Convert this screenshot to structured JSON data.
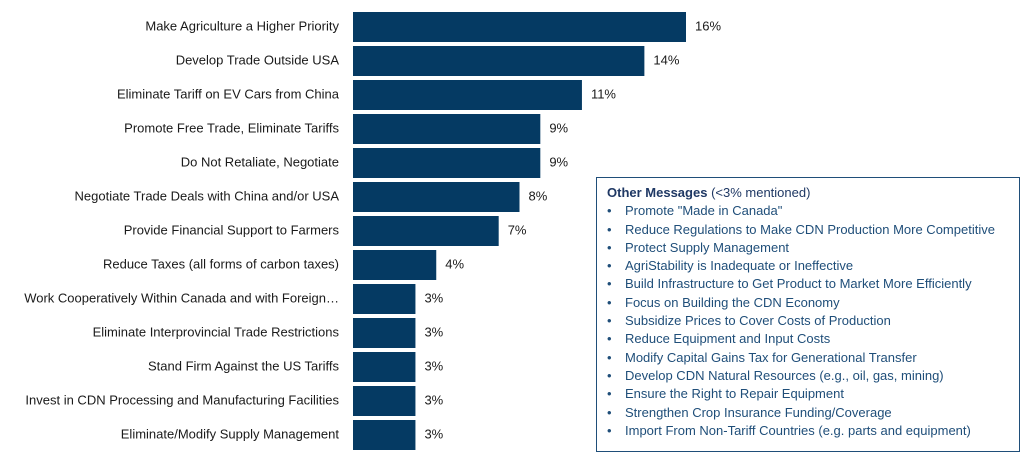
{
  "chart_data": {
    "type": "bar",
    "orientation": "horizontal",
    "color": "#053a63",
    "categories": [
      "Make Agriculture a Higher Priority",
      "Develop Trade Outside USA",
      "Eliminate Tariff on EV Cars from China",
      "Promote Free Trade, Eliminate Tariffs",
      "Do Not Retaliate, Negotiate",
      "Negotiate Trade Deals with China and/or USA",
      "Provide Financial Support to Farmers",
      "Reduce Taxes (all forms of carbon taxes)",
      "Work Cooperatively Within Canada and with Foreign…",
      "Eliminate Interprovincial Trade Restrictions",
      "Stand Firm Against the US Tariffs",
      "Invest in CDN Processing and Manufacturing Facilities",
      "Eliminate/Modify Supply Management"
    ],
    "values": [
      16,
      14,
      11,
      9,
      9,
      8,
      7,
      4,
      3,
      3,
      3,
      3,
      3
    ],
    "value_labels": [
      "16%",
      "14%",
      "11%",
      "9%",
      "9%",
      "8%",
      "7%",
      "4%",
      "3%",
      "3%",
      "3%",
      "3%",
      "3%"
    ],
    "annotation": {
      "title": "Other Messages",
      "subtitle": "(<3% mentioned)",
      "items": [
        "Promote \"Made in Canada\"",
        "Reduce Regulations to Make CDN Production More Competitive",
        "Protect Supply Management",
        "AgriStability is Inadequate or Ineffective",
        "Build Infrastructure to Get Product to Market More Efficiently",
        "Focus on Building the CDN Economy",
        "Subsidize Prices to Cover Costs of Production",
        "Reduce Equipment and Input Costs",
        "Modify Capital Gains Tax for Generational Transfer",
        "Develop CDN Natural Resources (e.g., oil, gas, mining)",
        "Ensure the Right to Repair Equipment",
        "Strengthen Crop Insurance Funding/Coverage",
        "Import From Non-Tariff Countries (e.g. parts and equipment)"
      ]
    }
  }
}
